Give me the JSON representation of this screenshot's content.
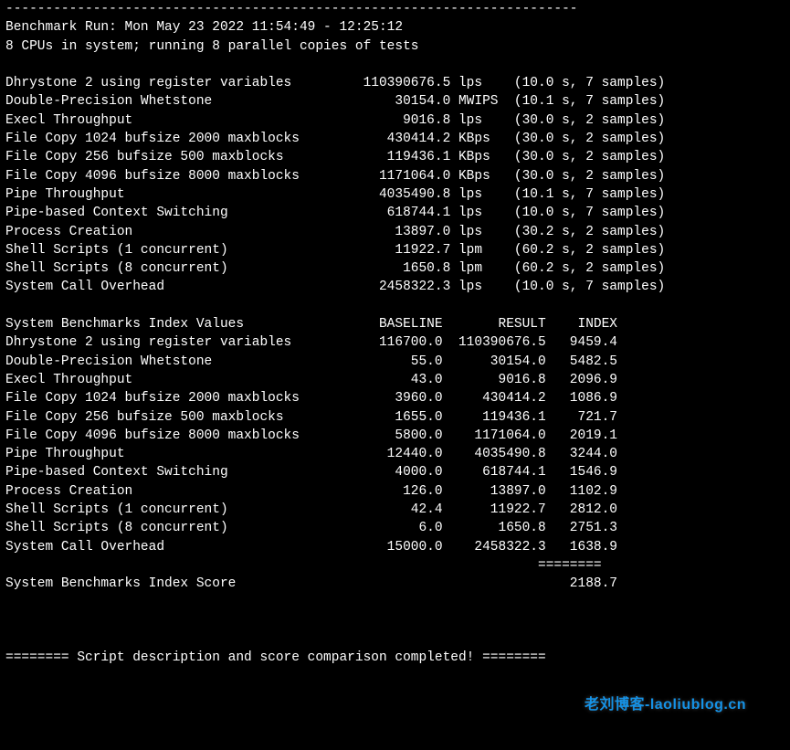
{
  "dash_line": "------------------------------------------------------------------------",
  "header": {
    "run_line": "Benchmark Run: Mon May 23 2022 11:54:49 - 12:25:12",
    "cpu_line": "8 CPUs in system; running 8 parallel copies of tests"
  },
  "raw": [
    {
      "name": "Dhrystone 2 using register variables",
      "value": "110390676.5",
      "unit": "lps",
      "timing": "(10.0 s, 7 samples)"
    },
    {
      "name": "Double-Precision Whetstone",
      "value": "30154.0",
      "unit": "MWIPS",
      "timing": "(10.1 s, 7 samples)"
    },
    {
      "name": "Execl Throughput",
      "value": "9016.8",
      "unit": "lps",
      "timing": "(30.0 s, 2 samples)"
    },
    {
      "name": "File Copy 1024 bufsize 2000 maxblocks",
      "value": "430414.2",
      "unit": "KBps",
      "timing": "(30.0 s, 2 samples)"
    },
    {
      "name": "File Copy 256 bufsize 500 maxblocks",
      "value": "119436.1",
      "unit": "KBps",
      "timing": "(30.0 s, 2 samples)"
    },
    {
      "name": "File Copy 4096 bufsize 8000 maxblocks",
      "value": "1171064.0",
      "unit": "KBps",
      "timing": "(30.0 s, 2 samples)"
    },
    {
      "name": "Pipe Throughput",
      "value": "4035490.8",
      "unit": "lps",
      "timing": "(10.1 s, 7 samples)"
    },
    {
      "name": "Pipe-based Context Switching",
      "value": "618744.1",
      "unit": "lps",
      "timing": "(10.0 s, 7 samples)"
    },
    {
      "name": "Process Creation",
      "value": "13897.0",
      "unit": "lps",
      "timing": "(30.2 s, 2 samples)"
    },
    {
      "name": "Shell Scripts (1 concurrent)",
      "value": "11922.7",
      "unit": "lpm",
      "timing": "(60.2 s, 2 samples)"
    },
    {
      "name": "Shell Scripts (8 concurrent)",
      "value": "1650.8",
      "unit": "lpm",
      "timing": "(60.2 s, 2 samples)"
    },
    {
      "name": "System Call Overhead",
      "value": "2458322.3",
      "unit": "lps",
      "timing": "(10.0 s, 7 samples)"
    }
  ],
  "index_header": {
    "title": "System Benchmarks Index Values",
    "c1": "BASELINE",
    "c2": "RESULT",
    "c3": "INDEX"
  },
  "index": [
    {
      "name": "Dhrystone 2 using register variables",
      "baseline": "116700.0",
      "result": "110390676.5",
      "idx": "9459.4"
    },
    {
      "name": "Double-Precision Whetstone",
      "baseline": "55.0",
      "result": "30154.0",
      "idx": "5482.5"
    },
    {
      "name": "Execl Throughput",
      "baseline": "43.0",
      "result": "9016.8",
      "idx": "2096.9"
    },
    {
      "name": "File Copy 1024 bufsize 2000 maxblocks",
      "baseline": "3960.0",
      "result": "430414.2",
      "idx": "1086.9"
    },
    {
      "name": "File Copy 256 bufsize 500 maxblocks",
      "baseline": "1655.0",
      "result": "119436.1",
      "idx": "721.7"
    },
    {
      "name": "File Copy 4096 bufsize 8000 maxblocks",
      "baseline": "5800.0",
      "result": "1171064.0",
      "idx": "2019.1"
    },
    {
      "name": "Pipe Throughput",
      "baseline": "12440.0",
      "result": "4035490.8",
      "idx": "3244.0"
    },
    {
      "name": "Pipe-based Context Switching",
      "baseline": "4000.0",
      "result": "618744.1",
      "idx": "1546.9"
    },
    {
      "name": "Process Creation",
      "baseline": "126.0",
      "result": "13897.0",
      "idx": "1102.9"
    },
    {
      "name": "Shell Scripts (1 concurrent)",
      "baseline": "42.4",
      "result": "11922.7",
      "idx": "2812.0"
    },
    {
      "name": "Shell Scripts (8 concurrent)",
      "baseline": "6.0",
      "result": "1650.8",
      "idx": "2751.3"
    },
    {
      "name": "System Call Overhead",
      "baseline": "15000.0",
      "result": "2458322.3",
      "idx": "1638.9"
    }
  ],
  "score_sep": "                                                                   ========",
  "score_line": {
    "label": "System Benchmarks Index Score",
    "value": "2188.7"
  },
  "footer": "======== Script description and score comparison completed! ========",
  "watermark": "老刘博客-laoliublog.cn",
  "layout": {
    "name_w": 41,
    "raw_val_w": 15,
    "raw_unit_w": 6,
    "idx_base_w": 14,
    "idx_res_w": 13,
    "idx_idx_w": 9,
    "colors": {
      "bg": "#000000",
      "fg": "#ffffff",
      "watermark": "#1592e6"
    }
  }
}
